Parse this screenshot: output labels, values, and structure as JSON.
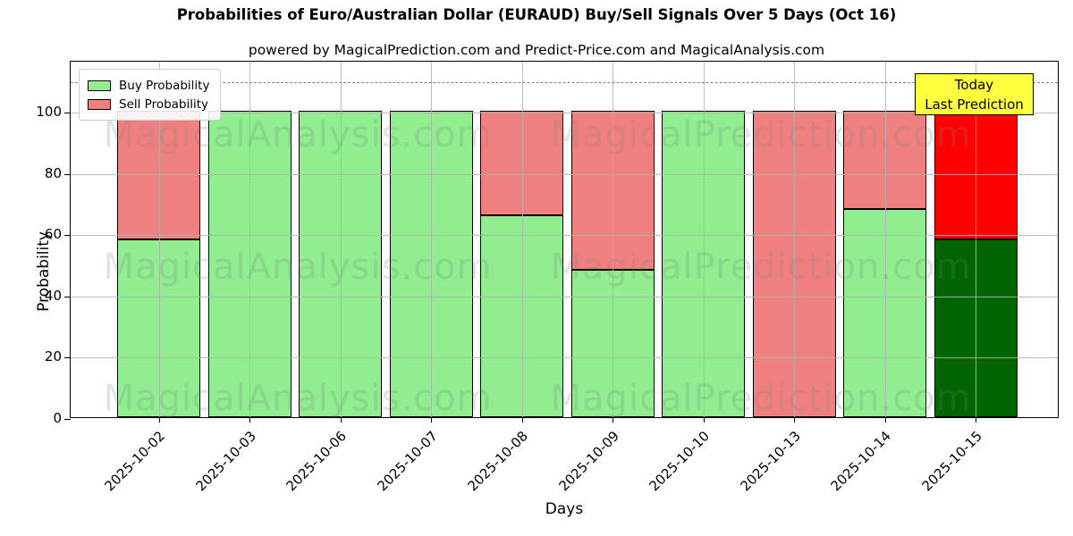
{
  "title": "Probabilities of Euro/Australian Dollar (EURAUD) Buy/Sell Signals Over 5 Days (Oct 16)",
  "subtitle": "powered by MagicalPrediction.com and Predict-Price.com and MagicalAnalysis.com",
  "axes": {
    "xlabel": "Days",
    "ylabel": "Probability",
    "yticks": [
      0,
      20,
      40,
      60,
      80,
      100
    ],
    "ylim": [
      0,
      116.6
    ],
    "grid": true,
    "dashed_line_y": 110
  },
  "legend": {
    "items": [
      {
        "label": "Buy Probability",
        "color": "#90ee90"
      },
      {
        "label": "Sell Probability",
        "color": "#f08080"
      }
    ]
  },
  "annotation": {
    "lines": [
      "Today",
      "Last Prediction"
    ],
    "bg_color": "#ffff40",
    "border_color": "#000000"
  },
  "watermarks": {
    "left_text": "MagicalAnalysis.com",
    "right_text": "MagicalPrediction.com"
  },
  "chart_data": {
    "type": "bar",
    "stacked": true,
    "title": "Probabilities of Euro/Australian Dollar (EURAUD) Buy/Sell Signals Over 5 Days (Oct 16)",
    "xlabel": "Days",
    "ylabel": "Probability",
    "ylim": [
      0,
      116.6
    ],
    "grid": true,
    "legend_position": "upper left",
    "edge_color": "#000000",
    "categories": [
      "2025-10-02",
      "2025-10-03",
      "2025-10-06",
      "2025-10-07",
      "2025-10-08",
      "2025-10-09",
      "2025-10-10",
      "2025-10-13",
      "2025-10-14",
      "2025-10-15"
    ],
    "series": [
      {
        "name": "Buy Probability",
        "color": "#90ee90",
        "values": [
          58,
          100,
          100,
          100,
          66,
          48,
          100,
          0,
          68,
          58
        ],
        "color_overrides": {
          "9": "#006400"
        }
      },
      {
        "name": "Sell Probability",
        "color": "#f08080",
        "values": [
          42,
          0,
          0,
          0,
          34,
          52,
          0,
          100,
          32,
          42
        ],
        "color_overrides": {
          "9": "#ff0000"
        }
      }
    ]
  }
}
